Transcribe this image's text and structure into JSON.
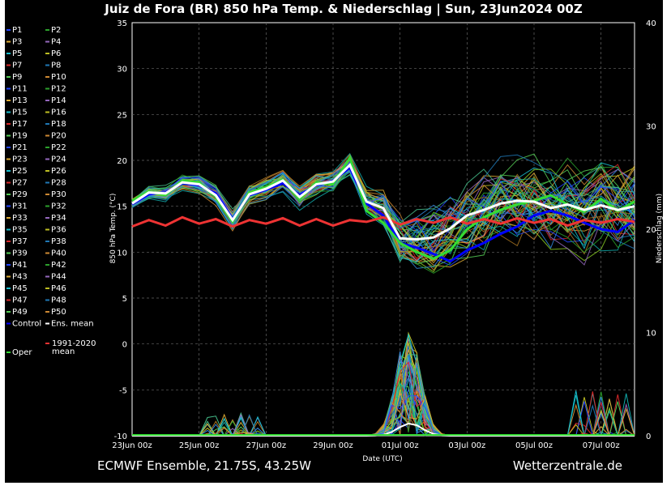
{
  "chart_data": {
    "type": "line",
    "title": "Juiz de Fora  (BR)  850 hPa Temp. & Niederschlag | Sun, 23Jun2024 00Z",
    "xlabel": "Date (UTC)",
    "ylabel": "850 hPa Temp. (°C)",
    "y2label": "Niederschlag (mm)",
    "ylim": [
      -10,
      35
    ],
    "y2lim": [
      0,
      40
    ],
    "yticks": [
      "35",
      "30",
      "25",
      "20",
      "15",
      "10",
      "5",
      "0",
      "-5",
      "-10"
    ],
    "y2ticks": [
      "40",
      "30",
      "20",
      "10",
      "0"
    ],
    "xticks": [
      "23Jun 00z",
      "25Jun 00z",
      "27Jun 00z",
      "29Jun 00z",
      "01Jul 00z",
      "03Jul 00z",
      "05Jul 00z",
      "07Jul 00z"
    ],
    "xlim_days": [
      0,
      15
    ],
    "grid": true,
    "legend": [
      "P1",
      "P2",
      "P3",
      "P4",
      "P5",
      "P6",
      "P7",
      "P8",
      "P9",
      "P10",
      "P11",
      "P12",
      "P13",
      "P14",
      "P15",
      "P16",
      "P17",
      "P18",
      "P19",
      "P20",
      "P21",
      "P22",
      "P23",
      "P24",
      "P25",
      "P26",
      "P27",
      "P28",
      "P29",
      "P30",
      "P31",
      "P32",
      "P33",
      "P34",
      "P35",
      "P36",
      "P37",
      "P38",
      "P39",
      "P40",
      "P41",
      "P42",
      "P43",
      "P44",
      "P45",
      "P46",
      "P47",
      "P48",
      "P49",
      "P50",
      "Control",
      "Ens. mean",
      "1991-2020 mean",
      "Oper"
    ],
    "climate_mean_label_1": "1991-2020",
    "climate_mean_label_2": "mean",
    "footer_left": "ECMWF Ensemble, 21.75S, 43.25W",
    "footer_right": "Wetterzentrale.de",
    "series": [
      {
        "name": "Ens. mean",
        "color": "#ffffff",
        "days": [
          0,
          0.5,
          1,
          1.5,
          2,
          2.5,
          3,
          3.5,
          4,
          4.5,
          5,
          5.5,
          6,
          6.5,
          7,
          7.5,
          8,
          8.5,
          9,
          9.5,
          10,
          10.5,
          11,
          11.5,
          12,
          12.5,
          13,
          13.5,
          14,
          14.5,
          15
        ],
        "values": [
          15.3,
          16.5,
          16.4,
          17.6,
          17.4,
          16.2,
          13.5,
          16.3,
          16.9,
          17.8,
          16,
          17.4,
          17.7,
          19.5,
          15.5,
          14.8,
          11.5,
          11.4,
          11.6,
          12.6,
          14,
          14.6,
          15.3,
          15.6,
          15.5,
          14.8,
          15.2,
          14.6,
          15.1,
          14.6,
          15
        ]
      },
      {
        "name": "Control",
        "color": "#0000ff",
        "days": [
          0,
          0.5,
          1,
          1.5,
          2,
          2.5,
          3,
          3.5,
          4,
          4.5,
          5,
          5.5,
          6,
          6.5,
          7,
          7.5,
          8,
          8.5,
          9,
          9.5,
          10,
          10.5,
          11,
          11.5,
          12,
          12.5,
          13,
          13.5,
          14,
          14.5,
          15
        ],
        "values": [
          15.2,
          16.3,
          16.5,
          17.5,
          17.3,
          16.4,
          13.6,
          16.2,
          16.8,
          17.5,
          16.2,
          17.3,
          17.8,
          19.2,
          15.3,
          14,
          11,
          10.5,
          9.8,
          9,
          10.2,
          11,
          12,
          12.8,
          14,
          14.5,
          14,
          13.2,
          12.5,
          12.2,
          13.5
        ]
      },
      {
        "name": "Oper",
        "color": "#33dd33",
        "days": [
          0,
          0.5,
          1,
          1.5,
          2,
          2.5,
          3,
          3.5,
          4,
          4.5,
          5,
          5.5,
          6,
          6.5,
          7,
          7.5,
          8,
          8.5,
          9,
          9.5,
          10,
          10.5,
          11,
          11.5,
          12,
          12.5,
          13,
          13.5,
          14,
          14.5,
          15
        ],
        "values": [
          15.6,
          16.6,
          16.2,
          17.8,
          17.6,
          16,
          13.3,
          16.5,
          17.1,
          17.9,
          15.8,
          17.6,
          17.4,
          20.3,
          14.5,
          13.2,
          11,
          10,
          9.3,
          10.2,
          12.5,
          13.8,
          14.6,
          15.2,
          15.6,
          16.2,
          15.2,
          14.4,
          15.8,
          14.5,
          15.5
        ]
      },
      {
        "name": "1991-2020 mean",
        "color": "#ee3333",
        "days": [
          0,
          0.5,
          1,
          1.5,
          2,
          2.5,
          3,
          3.5,
          4,
          4.5,
          5,
          5.5,
          6,
          6.5,
          7,
          7.5,
          8,
          8.5,
          9,
          9.5,
          10,
          10.5,
          11,
          11.5,
          12,
          12.5,
          13,
          13.5,
          14,
          14.5,
          15
        ],
        "values": [
          12.8,
          13.5,
          12.9,
          13.8,
          13.1,
          13.6,
          12.8,
          13.5,
          13.1,
          13.7,
          12.9,
          13.6,
          12.9,
          13.5,
          13.3,
          13.8,
          13,
          13.6,
          13.2,
          13.8,
          13.1,
          13.6,
          13.1,
          13.7,
          13.2,
          13.6,
          12.9,
          13.5,
          13.2,
          13.6,
          13.3
        ]
      }
    ],
    "precip_peak_mm": 10.5,
    "precip_mean_peak_mm": 1.2
  }
}
